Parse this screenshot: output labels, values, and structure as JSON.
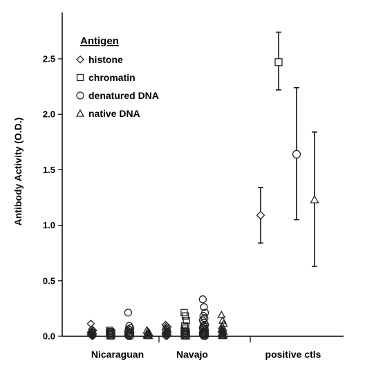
{
  "chart_data": {
    "type": "scatter",
    "title": "",
    "ylabel": "Antibody Activity (O.D.)",
    "xlabel": "",
    "categories": [
      "Nicaraguan",
      "Navajo",
      "positive ctls"
    ],
    "ylim": [
      0,
      2.5
    ],
    "ytick_values": [
      0.0,
      0.5,
      1.0,
      1.5,
      2.0,
      2.5
    ],
    "ytick_labels": [
      "0.0",
      "0.5",
      "1.0",
      "1.5",
      "2.0",
      "2.5"
    ],
    "grid": false,
    "legend": {
      "title": "Antigen",
      "placement": "top-left",
      "entries": [
        "histone",
        "chromatin",
        "denatured DNA",
        "native DNA"
      ]
    },
    "series": [
      {
        "name": "histone",
        "marker": "diamond",
        "groups": {
          "Nicaraguan": [
            0.11,
            0.06,
            0.05,
            0.04,
            0.04,
            0.03,
            0.03,
            0.02,
            0.02,
            0.01,
            0.01,
            0.0,
            0.0
          ],
          "Navajo": [
            0.1,
            0.09,
            0.08,
            0.07,
            0.06,
            0.05,
            0.04,
            0.04,
            0.03,
            0.03,
            0.02,
            0.02,
            0.01,
            0.01,
            0.0,
            0.0
          ]
        },
        "positive_ctl": {
          "mean": 1.09,
          "err_low": 0.84,
          "err_high": 1.34
        }
      },
      {
        "name": "chromatin",
        "marker": "square",
        "groups": {
          "Nicaraguan": [
            0.05,
            0.04,
            0.03,
            0.03,
            0.02,
            0.02,
            0.01,
            0.01,
            0.0,
            0.0
          ],
          "Navajo": [
            0.21,
            0.18,
            0.14,
            0.09,
            0.07,
            0.05,
            0.04,
            0.03,
            0.02,
            0.02,
            0.01,
            0.01,
            0.0,
            0.0
          ]
        },
        "positive_ctl": {
          "mean": 2.47,
          "err_low": 2.22,
          "err_high": 2.74
        }
      },
      {
        "name": "denatured DNA",
        "marker": "circle",
        "groups": {
          "Nicaraguan": [
            0.21,
            0.09,
            0.07,
            0.06,
            0.05,
            0.04,
            0.03,
            0.03,
            0.02,
            0.02,
            0.01,
            0.01,
            0.0,
            0.0
          ],
          "Navajo": [
            0.33,
            0.26,
            0.21,
            0.18,
            0.16,
            0.14,
            0.12,
            0.1,
            0.09,
            0.08,
            0.07,
            0.06,
            0.05,
            0.04,
            0.04,
            0.03,
            0.03,
            0.02,
            0.02,
            0.01,
            0.01,
            0.0,
            0.0
          ]
        },
        "positive_ctl": {
          "mean": 1.64,
          "err_low": 1.05,
          "err_high": 2.24
        }
      },
      {
        "name": "native DNA",
        "marker": "triangle",
        "groups": {
          "Nicaraguan": [
            0.05,
            0.04,
            0.03,
            0.02,
            0.02,
            0.01,
            0.01,
            0.0,
            0.0
          ],
          "Navajo": [
            0.19,
            0.14,
            0.11,
            0.09,
            0.07,
            0.06,
            0.05,
            0.04,
            0.03,
            0.02,
            0.02,
            0.01,
            0.01,
            0.0,
            0.0
          ]
        },
        "positive_ctl": {
          "mean": 1.23,
          "err_low": 0.63,
          "err_high": 1.84
        }
      }
    ]
  }
}
